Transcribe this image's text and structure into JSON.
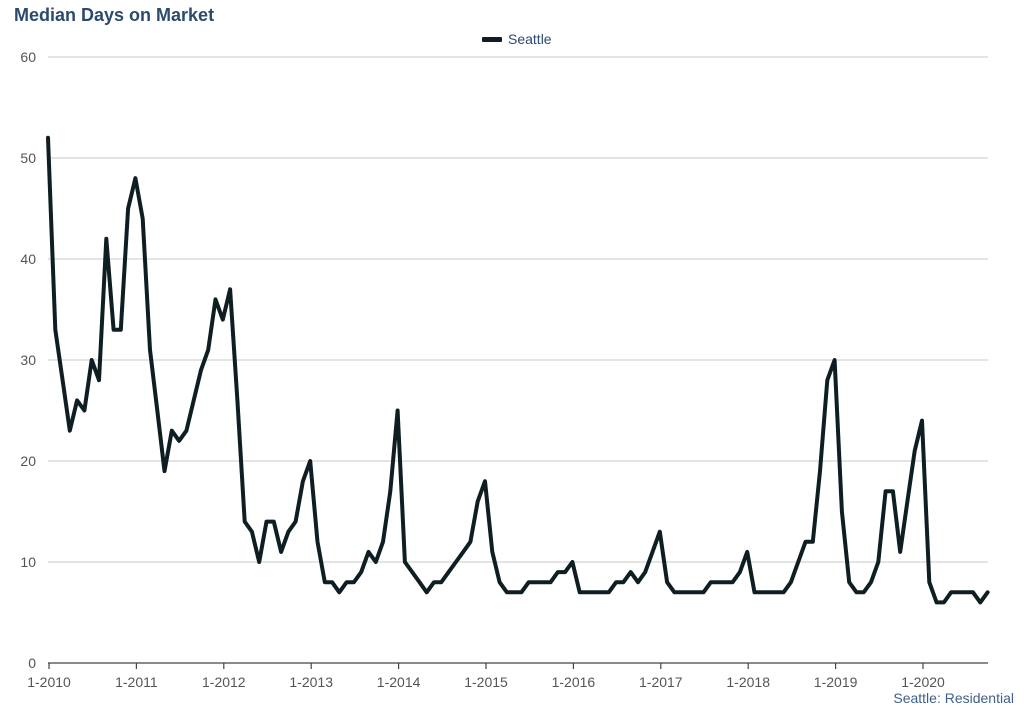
{
  "chart_data": {
    "type": "line",
    "title": "Median Days on Market",
    "footer": "Seattle: Residential",
    "ylim": [
      0,
      60
    ],
    "y_ticks": [
      0,
      10,
      20,
      30,
      40,
      50,
      60
    ],
    "x_ticks": [
      "1-2010",
      "1-2011",
      "1-2012",
      "1-2013",
      "1-2014",
      "1-2015",
      "1-2016",
      "1-2017",
      "1-2018",
      "1-2019",
      "1-2020"
    ],
    "x_start": "1-2010",
    "grid": true,
    "legend_position": "top-center",
    "series": [
      {
        "name": "Seattle",
        "color": "#0f1e22",
        "values": [
          52,
          33,
          28,
          23,
          26,
          25,
          30,
          28,
          42,
          33,
          33,
          45,
          48,
          44,
          31,
          25,
          19,
          23,
          22,
          23,
          26,
          29,
          31,
          36,
          34,
          37,
          26,
          14,
          13,
          10,
          14,
          14,
          11,
          13,
          14,
          18,
          20,
          12,
          8,
          8,
          7,
          8,
          8,
          9,
          11,
          10,
          12,
          17,
          25,
          10,
          9,
          8,
          7,
          8,
          8,
          9,
          10,
          11,
          12,
          16,
          18,
          11,
          8,
          7,
          7,
          7,
          8,
          8,
          8,
          8,
          9,
          9,
          10,
          7,
          7,
          7,
          7,
          7,
          8,
          8,
          9,
          8,
          9,
          11,
          13,
          8,
          7,
          7,
          7,
          7,
          7,
          8,
          8,
          8,
          8,
          9,
          11,
          7,
          7,
          7,
          7,
          7,
          8,
          10,
          12,
          12,
          19,
          28,
          30,
          15,
          8,
          7,
          7,
          8,
          10,
          17,
          17,
          11,
          16,
          21,
          24,
          8,
          6,
          6,
          7,
          7,
          7,
          7,
          6,
          7
        ]
      }
    ]
  }
}
